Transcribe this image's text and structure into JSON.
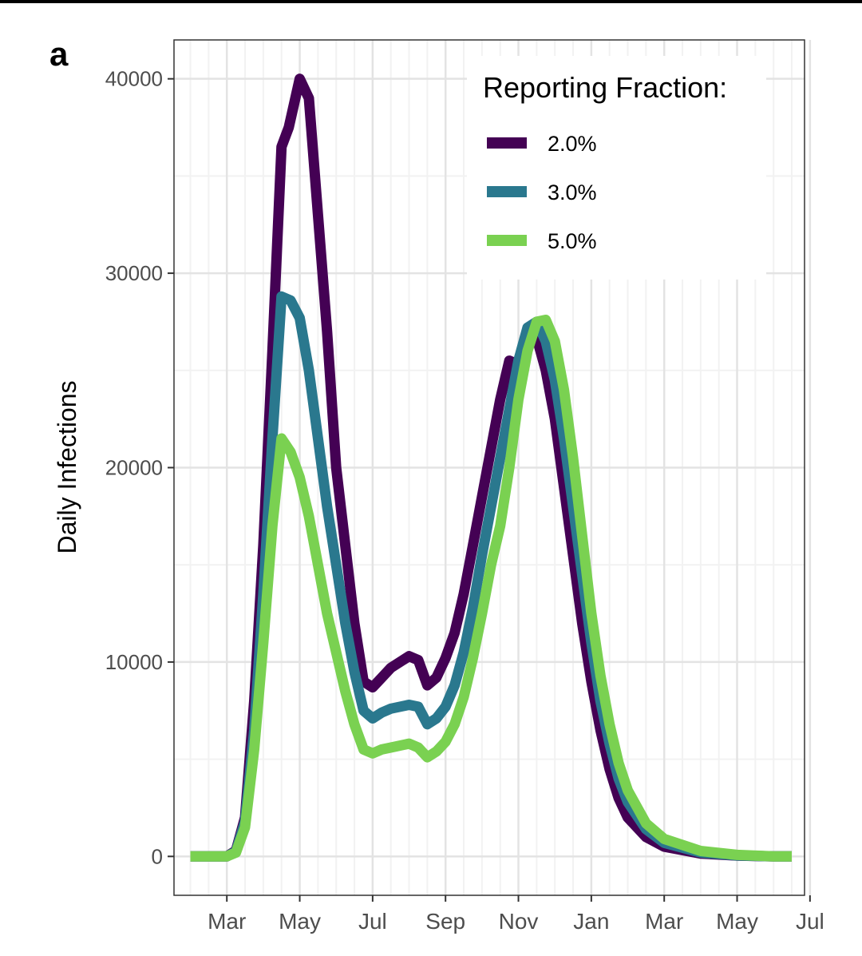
{
  "panel_label": "a",
  "chart_data": {
    "type": "line",
    "title": "",
    "xlabel": "",
    "ylabel": "Daily Infections",
    "ylim": [
      -2000,
      42000
    ],
    "yticks": [
      0,
      10000,
      20000,
      30000,
      40000
    ],
    "ytick_labels": [
      "0",
      "10000",
      "20000",
      "30000",
      "40000"
    ],
    "xlim": [
      -1.45,
      15.85
    ],
    "x_ticks": [
      {
        "label": "Mar",
        "x": 0
      },
      {
        "label": "May",
        "x": 2
      },
      {
        "label": "Jul",
        "x": 4
      },
      {
        "label": "Sep",
        "x": 6
      },
      {
        "label": "Nov",
        "x": 8
      },
      {
        "label": "Jan",
        "x": 10
      },
      {
        "label": "Mar",
        "x": 12
      },
      {
        "label": "May",
        "x": 14
      },
      {
        "label": "Jul",
        "x": 16
      }
    ],
    "x_unit": "months since start of March",
    "grid": true,
    "legend": {
      "title": "Reporting Fraction:",
      "position": "top-right"
    },
    "series": [
      {
        "name": "2.0%",
        "color": "#440154",
        "points": [
          [
            -1,
            0
          ],
          [
            0,
            0
          ],
          [
            0.25,
            300
          ],
          [
            0.5,
            2000
          ],
          [
            0.75,
            8000
          ],
          [
            1,
            16000
          ],
          [
            1.25,
            26000
          ],
          [
            1.5,
            36500
          ],
          [
            1.7,
            37500
          ],
          [
            2,
            40000
          ],
          [
            2.25,
            39000
          ],
          [
            2.5,
            33000
          ],
          [
            2.75,
            27000
          ],
          [
            3,
            20000
          ],
          [
            3.25,
            16000
          ],
          [
            3.5,
            12000
          ],
          [
            3.75,
            9000
          ],
          [
            4,
            8700
          ],
          [
            4.25,
            9200
          ],
          [
            4.5,
            9700
          ],
          [
            5,
            10300
          ],
          [
            5.25,
            10100
          ],
          [
            5.5,
            8800
          ],
          [
            5.75,
            9200
          ],
          [
            6,
            10200
          ],
          [
            6.25,
            11500
          ],
          [
            6.5,
            13500
          ],
          [
            6.75,
            16000
          ],
          [
            7,
            18500
          ],
          [
            7.25,
            21000
          ],
          [
            7.5,
            23500
          ],
          [
            7.75,
            25500
          ],
          [
            8,
            25300
          ],
          [
            8.25,
            26500
          ],
          [
            8.5,
            26700
          ],
          [
            8.75,
            25000
          ],
          [
            9,
            22500
          ],
          [
            9.25,
            19000
          ],
          [
            9.5,
            15500
          ],
          [
            9.75,
            12000
          ],
          [
            10,
            9000
          ],
          [
            10.25,
            6500
          ],
          [
            10.5,
            4500
          ],
          [
            10.75,
            3000
          ],
          [
            11,
            2000
          ],
          [
            11.5,
            1000
          ],
          [
            12,
            500
          ],
          [
            13,
            150
          ],
          [
            14,
            40
          ],
          [
            15,
            0
          ],
          [
            15.5,
            0
          ]
        ]
      },
      {
        "name": "3.0%",
        "color": "#2a788e",
        "points": [
          [
            -1,
            0
          ],
          [
            0,
            0
          ],
          [
            0.25,
            250
          ],
          [
            0.5,
            1800
          ],
          [
            0.75,
            6500
          ],
          [
            1,
            13500
          ],
          [
            1.25,
            21500
          ],
          [
            1.5,
            28800
          ],
          [
            1.75,
            28600
          ],
          [
            2,
            27700
          ],
          [
            2.25,
            25000
          ],
          [
            2.5,
            21500
          ],
          [
            2.75,
            18000
          ],
          [
            3,
            15000
          ],
          [
            3.25,
            12000
          ],
          [
            3.5,
            9500
          ],
          [
            3.75,
            7500
          ],
          [
            4,
            7100
          ],
          [
            4.25,
            7400
          ],
          [
            4.5,
            7600
          ],
          [
            5,
            7800
          ],
          [
            5.25,
            7700
          ],
          [
            5.5,
            6800
          ],
          [
            5.75,
            7100
          ],
          [
            6,
            7700
          ],
          [
            6.25,
            8800
          ],
          [
            6.5,
            10500
          ],
          [
            6.75,
            12800
          ],
          [
            7,
            15500
          ],
          [
            7.25,
            18000
          ],
          [
            7.5,
            20500
          ],
          [
            7.75,
            23000
          ],
          [
            8,
            25500
          ],
          [
            8.25,
            27200
          ],
          [
            8.5,
            27500
          ],
          [
            8.75,
            26500
          ],
          [
            9,
            24500
          ],
          [
            9.25,
            21500
          ],
          [
            9.5,
            18000
          ],
          [
            9.75,
            14500
          ],
          [
            10,
            11000
          ],
          [
            10.25,
            8000
          ],
          [
            10.5,
            5800
          ],
          [
            10.75,
            4000
          ],
          [
            11,
            2800
          ],
          [
            11.5,
            1400
          ],
          [
            12,
            700
          ],
          [
            13,
            200
          ],
          [
            14,
            50
          ],
          [
            15,
            0
          ],
          [
            15.5,
            0
          ]
        ]
      },
      {
        "name": "5.0%",
        "color": "#7ad151",
        "points": [
          [
            -1,
            0
          ],
          [
            0,
            0
          ],
          [
            0.25,
            200
          ],
          [
            0.5,
            1500
          ],
          [
            0.75,
            5500
          ],
          [
            1,
            11000
          ],
          [
            1.25,
            17000
          ],
          [
            1.5,
            21500
          ],
          [
            1.75,
            20800
          ],
          [
            2,
            19500
          ],
          [
            2.25,
            17500
          ],
          [
            2.5,
            15000
          ],
          [
            2.75,
            12500
          ],
          [
            3,
            10500
          ],
          [
            3.25,
            8500
          ],
          [
            3.5,
            6800
          ],
          [
            3.75,
            5500
          ],
          [
            4,
            5300
          ],
          [
            4.25,
            5500
          ],
          [
            4.5,
            5600
          ],
          [
            5,
            5800
          ],
          [
            5.25,
            5600
          ],
          [
            5.5,
            5100
          ],
          [
            5.75,
            5400
          ],
          [
            6,
            5900
          ],
          [
            6.25,
            6800
          ],
          [
            6.5,
            8200
          ],
          [
            6.75,
            10200
          ],
          [
            7,
            12500
          ],
          [
            7.25,
            15000
          ],
          [
            7.5,
            17000
          ],
          [
            7.75,
            20000
          ],
          [
            8,
            23500
          ],
          [
            8.25,
            26000
          ],
          [
            8.5,
            27500
          ],
          [
            8.75,
            27600
          ],
          [
            9,
            26500
          ],
          [
            9.25,
            24000
          ],
          [
            9.5,
            20500
          ],
          [
            9.75,
            16500
          ],
          [
            10,
            12500
          ],
          [
            10.25,
            9300
          ],
          [
            10.5,
            6800
          ],
          [
            10.75,
            4800
          ],
          [
            11,
            3400
          ],
          [
            11.5,
            1700
          ],
          [
            12,
            900
          ],
          [
            13,
            280
          ],
          [
            14,
            80
          ],
          [
            15,
            0
          ],
          [
            15.5,
            0
          ]
        ]
      }
    ]
  }
}
